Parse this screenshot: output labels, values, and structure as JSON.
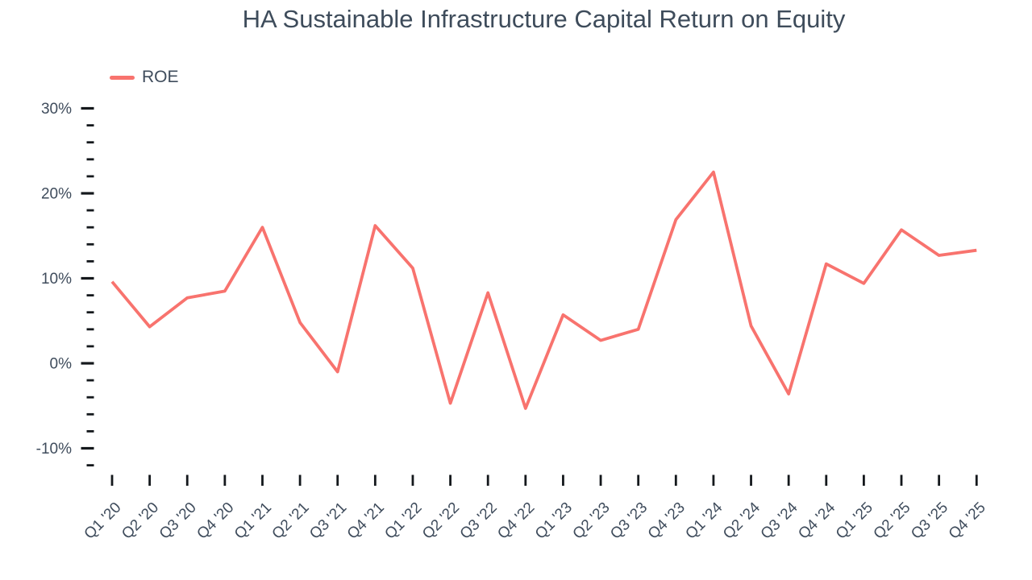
{
  "title": "HA Sustainable Infrastructure Capital Return on Equity",
  "legend": {
    "items": [
      {
        "label": "ROE",
        "color": "#f8736e"
      }
    ]
  },
  "colors": {
    "line": "#f8736e",
    "text": "#3f4c5c",
    "tick": "#14181c",
    "background": "#ffffff"
  },
  "chart_data": {
    "type": "line",
    "title": "HA Sustainable Infrastructure Capital Return on Equity",
    "categories": [
      "Q1 '20",
      "Q2 '20",
      "Q3 '20",
      "Q4 '20",
      "Q1 '21",
      "Q2 '21",
      "Q3 '21",
      "Q4 '21",
      "Q1 '22",
      "Q2 '22",
      "Q3 '22",
      "Q4 '22",
      "Q1 '23",
      "Q2 '23",
      "Q3 '23",
      "Q4 '23",
      "Q1 '24",
      "Q2 '24",
      "Q3 '24",
      "Q4 '24",
      "Q1 '25",
      "Q2 '25",
      "Q3 '25",
      "Q4 '25"
    ],
    "series": [
      {
        "name": "ROE",
        "color": "#f8736e",
        "values": [
          9.6,
          4.3,
          7.7,
          8.5,
          16.0,
          4.8,
          -1.0,
          16.2,
          11.2,
          -4.7,
          8.3,
          -5.3,
          5.7,
          2.7,
          4.0,
          16.9,
          22.5,
          4.4,
          -3.6,
          11.7,
          9.4,
          15.7,
          12.7,
          13.3
        ]
      }
    ],
    "xlabel": "",
    "ylabel": "",
    "ylim": [
      -12,
      30
    ],
    "y_major_ticks": [
      30,
      20,
      10,
      0,
      -10
    ],
    "y_minor_tick_step": 2,
    "y_tick_format": "percent",
    "grid": false,
    "legend_position": "top-left"
  }
}
